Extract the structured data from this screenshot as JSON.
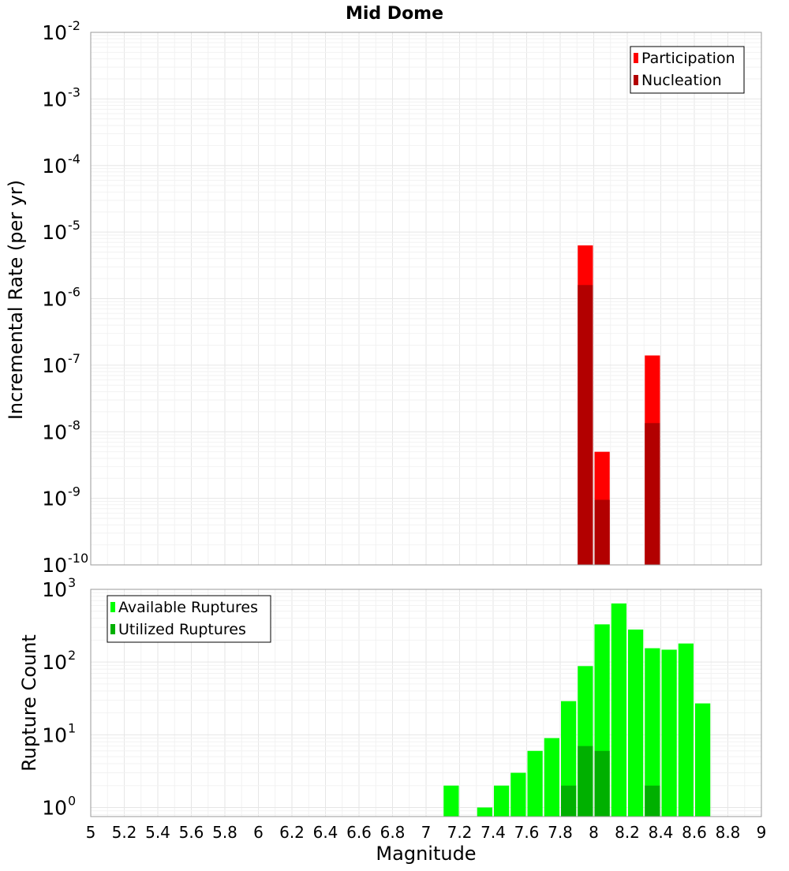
{
  "chart_data": [
    {
      "type": "bar",
      "title": "Mid Dome",
      "ylabel": "Incremental Rate (per yr)",
      "xlabel": "",
      "xlim": [
        5,
        9
      ],
      "ylim": [
        1e-10,
        0.01
      ],
      "yscale": "log",
      "grid": true,
      "legend_position": "top-right",
      "bin_width": 0.1,
      "y_ticks": [
        {
          "base": "10",
          "exp": "-2"
        },
        {
          "base": "10",
          "exp": "-3"
        },
        {
          "base": "10",
          "exp": "-4"
        },
        {
          "base": "10",
          "exp": "-5"
        },
        {
          "base": "10",
          "exp": "-6"
        },
        {
          "base": "10",
          "exp": "-7"
        },
        {
          "base": "10",
          "exp": "-8"
        },
        {
          "base": "10",
          "exp": "-9"
        },
        {
          "base": "10",
          "exp": "-10"
        }
      ],
      "series": [
        {
          "name": "Participation",
          "color": "#ff0000",
          "points": [
            [
              7.95,
              6.3e-06
            ],
            [
              8.05,
              5e-09
            ],
            [
              8.35,
              1.4e-07
            ]
          ]
        },
        {
          "name": "Nucleation",
          "color": "#b20000",
          "points": [
            [
              7.95,
              1.6e-06
            ],
            [
              8.05,
              9.5e-10
            ],
            [
              8.35,
              1.35e-08
            ]
          ]
        }
      ]
    },
    {
      "type": "bar",
      "title": "",
      "ylabel": "Rupture Count",
      "xlabel": "Magnitude",
      "xlim": [
        5,
        9
      ],
      "ylim": [
        0.75,
        1000
      ],
      "yscale": "log",
      "grid": true,
      "legend_position": "top-left",
      "bin_width": 0.1,
      "y_ticks": [
        {
          "base": "10",
          "exp": "3"
        },
        {
          "base": "10",
          "exp": "2"
        },
        {
          "base": "10",
          "exp": "1"
        },
        {
          "base": "10",
          "exp": "0"
        }
      ],
      "x_ticks": [
        "5",
        "5.2",
        "5.4",
        "5.6",
        "5.8",
        "6",
        "6.2",
        "6.4",
        "6.6",
        "6.8",
        "7",
        "7.2",
        "7.4",
        "7.6",
        "7.8",
        "8",
        "8.2",
        "8.4",
        "8.6",
        "8.8",
        "9"
      ],
      "series": [
        {
          "name": "Available Ruptures",
          "color": "#00ff00",
          "points": [
            [
              7.15,
              2
            ],
            [
              7.35,
              1
            ],
            [
              7.45,
              2
            ],
            [
              7.55,
              3
            ],
            [
              7.65,
              6
            ],
            [
              7.75,
              9
            ],
            [
              7.85,
              29
            ],
            [
              7.95,
              88
            ],
            [
              8.05,
              330
            ],
            [
              8.15,
              640
            ],
            [
              8.25,
              280
            ],
            [
              8.35,
              155
            ],
            [
              8.45,
              148
            ],
            [
              8.55,
              180
            ],
            [
              8.65,
              27
            ]
          ]
        },
        {
          "name": "Utilized Ruptures",
          "color": "#00b000",
          "points": [
            [
              7.85,
              2
            ],
            [
              7.95,
              7
            ],
            [
              8.05,
              6
            ],
            [
              8.35,
              2
            ]
          ]
        }
      ]
    }
  ]
}
